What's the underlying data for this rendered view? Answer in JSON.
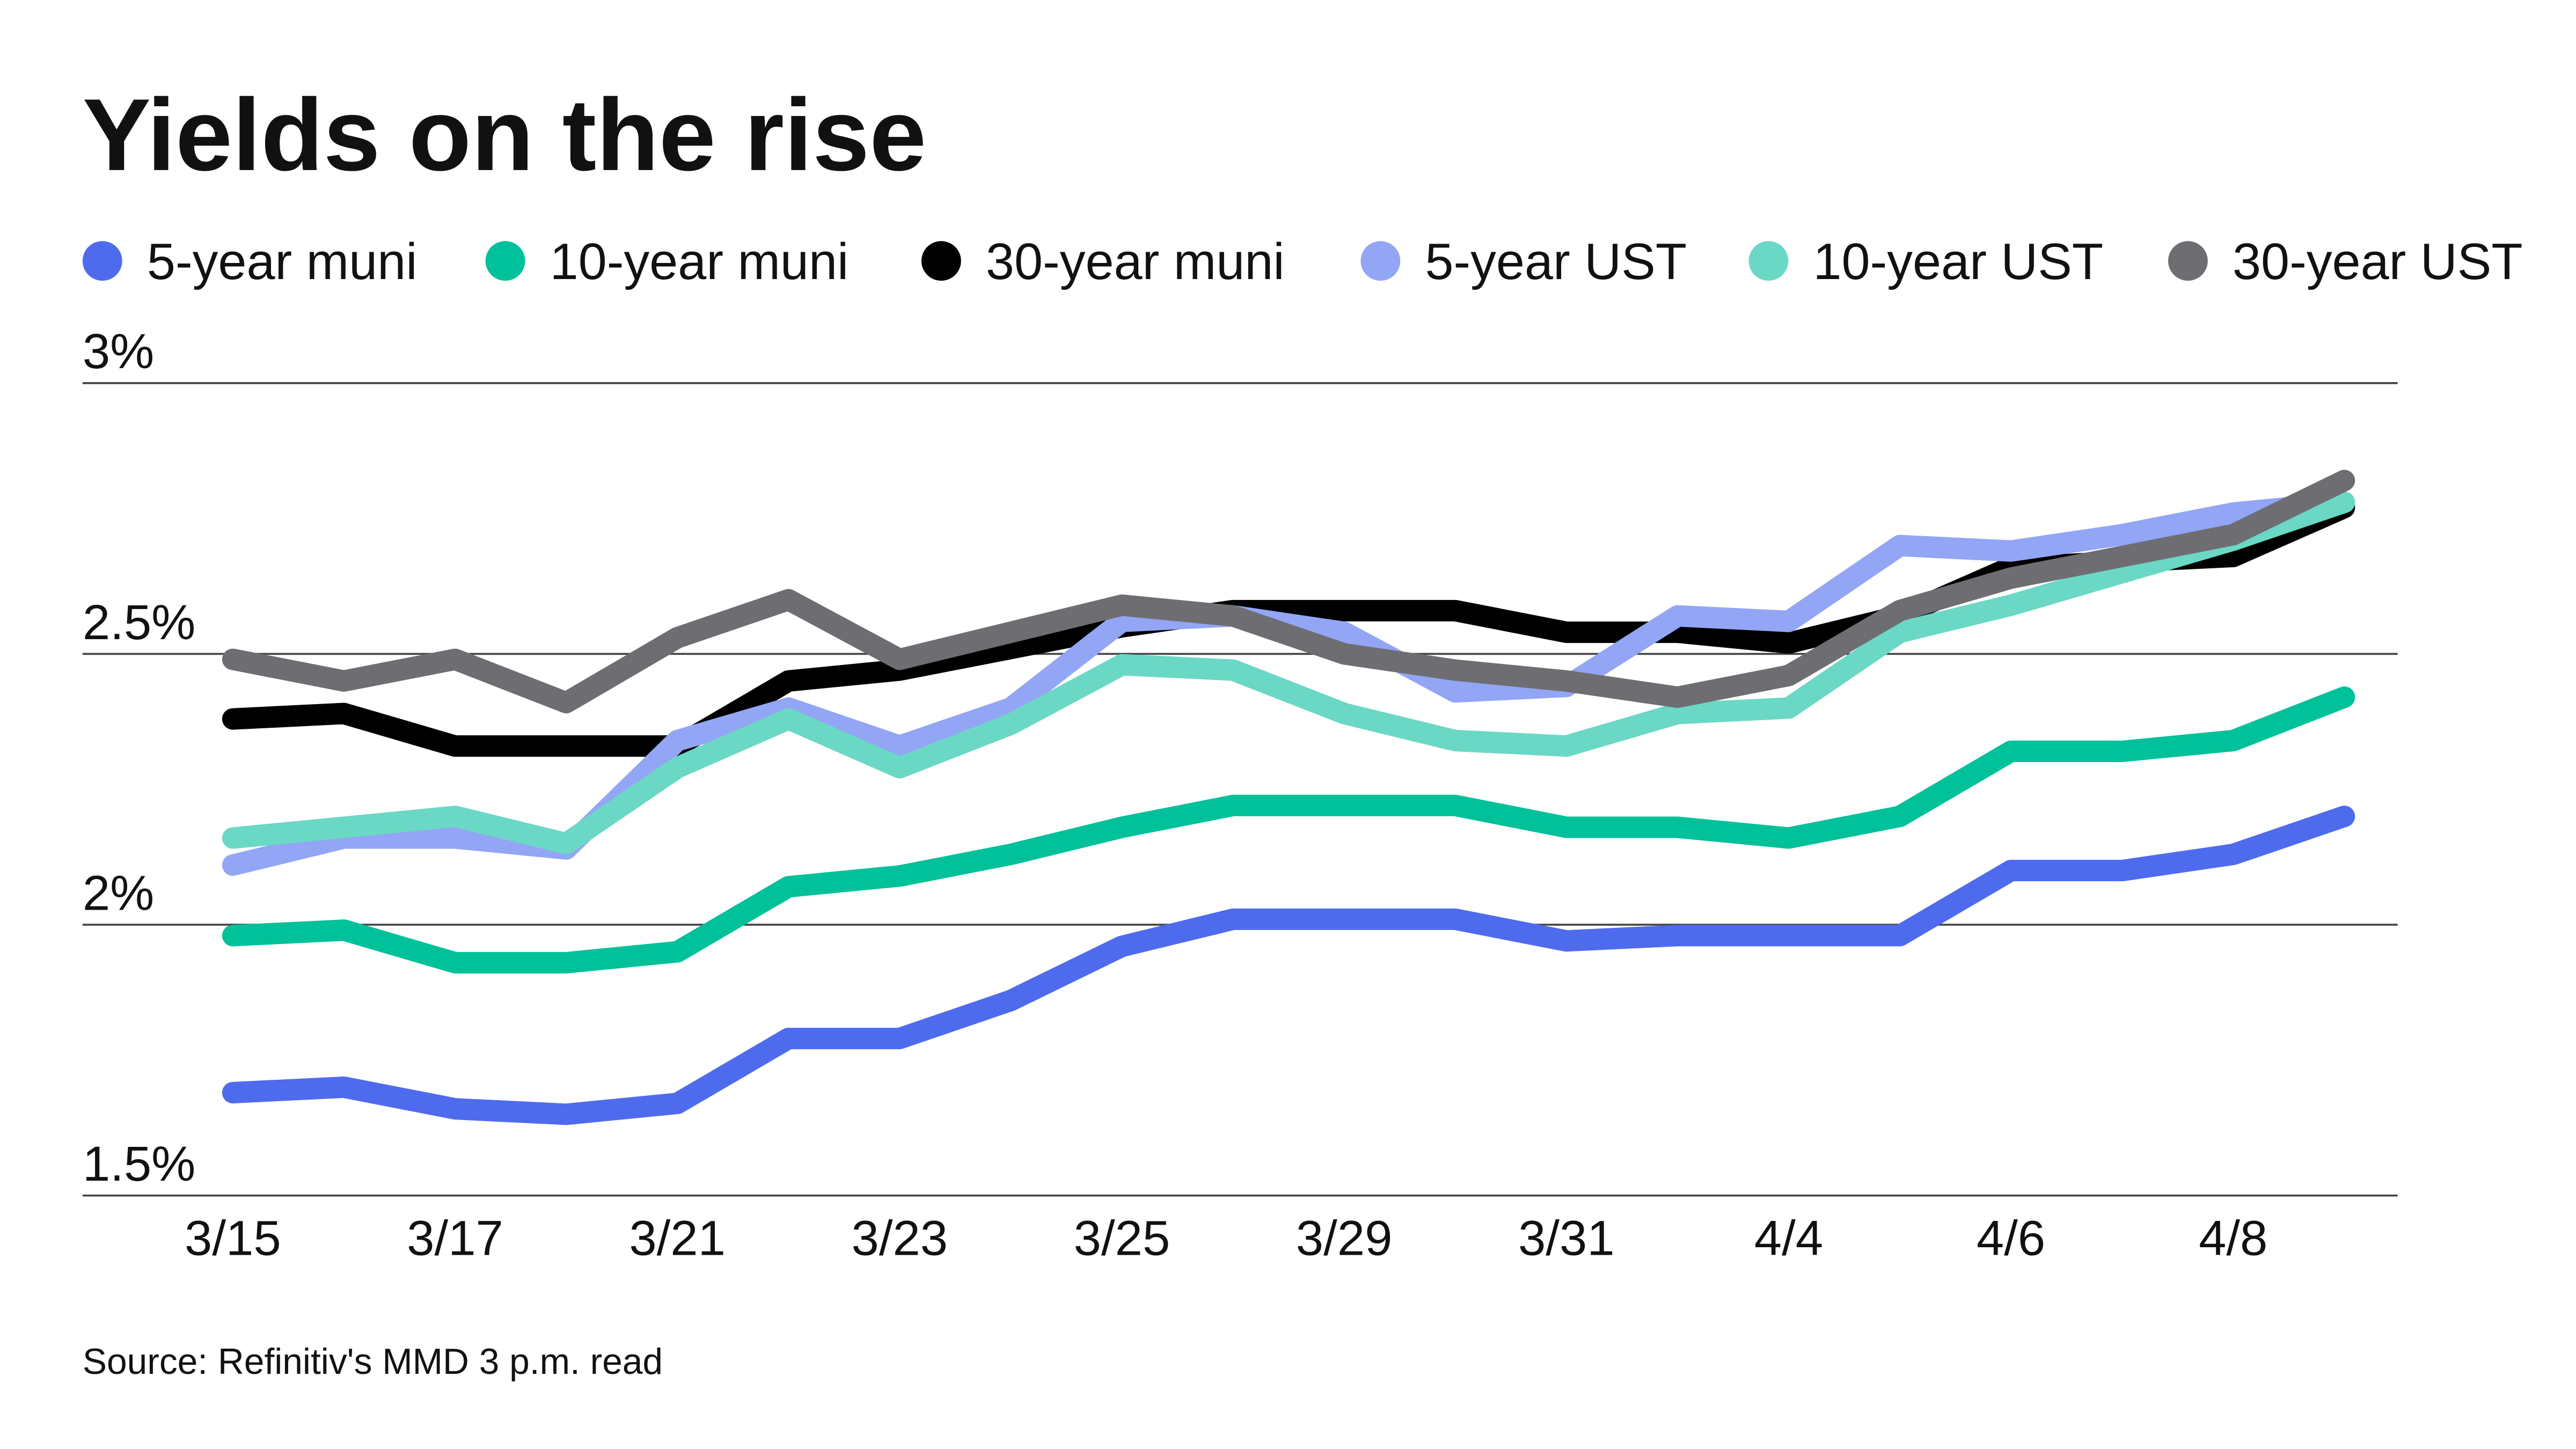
{
  "chart_data": {
    "type": "line",
    "title": "Yields on the rise",
    "source": "Source: Refinitiv's MMD 3 p.m. read",
    "xlabel": "",
    "ylabel": "",
    "ylim": [
      1.5,
      3.0
    ],
    "yticks": [
      1.5,
      2.0,
      2.5,
      3.0
    ],
    "ytick_labels": [
      "1.5%",
      "2%",
      "2.5%",
      "3%"
    ],
    "grid": "horizontal",
    "legend_placement": "top",
    "categories": [
      "3/15",
      "3/16",
      "3/17",
      "3/18",
      "3/21",
      "3/22",
      "3/23",
      "3/24",
      "3/25",
      "3/28",
      "3/29",
      "3/30",
      "3/31",
      "4/1",
      "4/4",
      "4/5",
      "4/6",
      "4/7",
      "4/8",
      "4/11"
    ],
    "xtick_labels": [
      "3/15",
      "",
      "3/17",
      "",
      "3/21",
      "",
      "3/23",
      "",
      "3/25",
      "",
      "3/29",
      "",
      "3/31",
      "",
      "4/4",
      "",
      "4/6",
      "",
      "4/8",
      ""
    ],
    "series": [
      {
        "name": "5-year muni",
        "color": "#4f6bed",
        "values": [
          1.69,
          1.7,
          1.66,
          1.65,
          1.67,
          1.79,
          1.79,
          1.86,
          1.96,
          2.01,
          2.01,
          2.01,
          1.97,
          1.98,
          1.98,
          1.98,
          2.1,
          2.1,
          2.13,
          2.2
        ]
      },
      {
        "name": "10-year muni",
        "color": "#00c19a",
        "values": [
          1.98,
          1.99,
          1.93,
          1.93,
          1.95,
          2.07,
          2.09,
          2.13,
          2.18,
          2.22,
          2.22,
          2.22,
          2.18,
          2.18,
          2.16,
          2.2,
          2.32,
          2.32,
          2.34,
          2.42
        ]
      },
      {
        "name": "30-year muni",
        "color": "#000000",
        "values": [
          2.38,
          2.39,
          2.33,
          2.33,
          2.33,
          2.45,
          2.47,
          2.51,
          2.55,
          2.58,
          2.58,
          2.58,
          2.54,
          2.54,
          2.52,
          2.57,
          2.66,
          2.67,
          2.68,
          2.77
        ]
      },
      {
        "name": "5-year UST",
        "color": "#93a5f5",
        "values": [
          2.11,
          2.16,
          2.16,
          2.14,
          2.34,
          2.4,
          2.33,
          2.4,
          2.56,
          2.57,
          2.54,
          2.43,
          2.44,
          2.57,
          2.56,
          2.7,
          2.69,
          2.72,
          2.76,
          2.78
        ]
      },
      {
        "name": "10-year UST",
        "color": "#6ad8c5",
        "values": [
          2.16,
          2.18,
          2.2,
          2.15,
          2.29,
          2.38,
          2.29,
          2.37,
          2.48,
          2.47,
          2.39,
          2.34,
          2.33,
          2.39,
          2.4,
          2.54,
          2.59,
          2.65,
          2.71,
          2.78
        ]
      },
      {
        "name": "30-year UST",
        "color": "#6e6e72",
        "values": [
          2.49,
          2.45,
          2.49,
          2.41,
          2.53,
          2.6,
          2.49,
          2.54,
          2.59,
          2.57,
          2.5,
          2.47,
          2.45,
          2.42,
          2.46,
          2.58,
          2.64,
          2.68,
          2.72,
          2.82
        ]
      }
    ]
  }
}
